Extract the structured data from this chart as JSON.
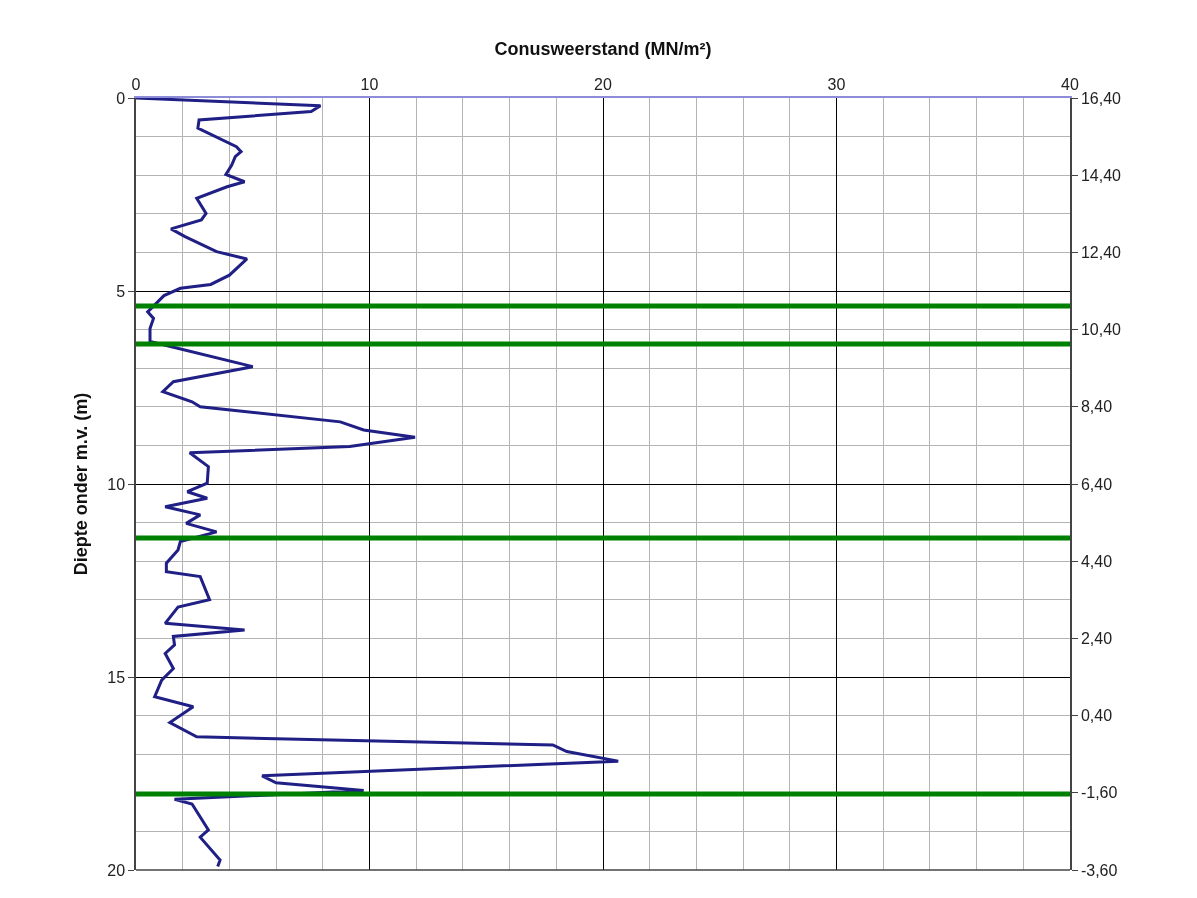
{
  "chart_data": {
    "type": "line",
    "xlabel": "Conusweerstand (MN/m²)",
    "ylabel": "Diepte onder m.v. (m)",
    "series": [
      {
        "color": "#1f1f85",
        "x": [
          0.0,
          7.9,
          7.5,
          2.7,
          2.65,
          4.3,
          4.5,
          4.25,
          4.1,
          3.85,
          4.65,
          3.9,
          2.6,
          3.0,
          2.8,
          1.5,
          2.1,
          3.45,
          4.75,
          4.0,
          3.2,
          1.9,
          1.2,
          0.5,
          0.75,
          0.6,
          0.6,
          5.0,
          1.6,
          1.15,
          2.4,
          2.75,
          8.75,
          9.75,
          11.95,
          9.15,
          2.3,
          3.1,
          3.05,
          2.2,
          3.05,
          1.25,
          2.75,
          2.15,
          3.45,
          1.9,
          1.8,
          1.3,
          1.3,
          2.75,
          3.15,
          1.8,
          1.25,
          4.65,
          1.6,
          1.65,
          1.25,
          1.6,
          1.1,
          0.8,
          2.45,
          1.45,
          2.6,
          17.85,
          18.45,
          20.65,
          5.4,
          6.0,
          9.75,
          1.65,
          2.4,
          3.1,
          2.75,
          3.6,
          3.5
        ],
        "values": [
          0.0,
          0.2,
          0.35,
          0.57,
          0.78,
          1.26,
          1.39,
          1.52,
          1.74,
          1.98,
          2.17,
          2.3,
          2.6,
          2.99,
          3.16,
          3.39,
          3.59,
          3.98,
          4.17,
          4.59,
          4.83,
          4.93,
          5.12,
          5.54,
          5.71,
          5.97,
          6.31,
          6.96,
          7.35,
          7.61,
          7.87,
          8.0,
          8.39,
          8.6,
          8.79,
          9.03,
          9.19,
          9.55,
          9.98,
          10.2,
          10.37,
          10.59,
          10.8,
          11.02,
          11.24,
          11.49,
          11.71,
          12.05,
          12.27,
          12.4,
          13.0,
          13.19,
          13.61,
          13.78,
          13.95,
          14.17,
          14.39,
          14.78,
          15.08,
          15.51,
          15.77,
          16.18,
          16.55,
          16.76,
          16.93,
          17.18,
          17.56,
          17.74,
          17.94,
          18.17,
          18.29,
          18.96,
          19.15,
          19.74,
          19.91
        ]
      }
    ],
    "xlim": [
      0,
      40
    ],
    "xticks": [
      0,
      {
        "value": 2,
        "label": null
      },
      {
        "value": 4,
        "label": null
      },
      {
        "value": 6,
        "label": null
      },
      {
        "value": 8,
        "label": null
      },
      10,
      {
        "value": 12,
        "label": null
      },
      {
        "value": 14,
        "label": null
      },
      {
        "value": 16,
        "label": null
      },
      {
        "value": 18,
        "label": null
      },
      20,
      {
        "value": 22,
        "label": null
      },
      {
        "value": 24,
        "label": null
      },
      {
        "value": 26,
        "label": null
      },
      {
        "value": 28,
        "label": null
      },
      30,
      {
        "value": 32,
        "label": null
      },
      {
        "value": 34,
        "label": null
      },
      {
        "value": 36,
        "label": null
      },
      {
        "value": 38,
        "label": null
      },
      40
    ],
    "ylim": [
      20,
      0
    ],
    "yticks": [
      0,
      {
        "value": 1,
        "label": null
      },
      {
        "value": 2,
        "label": null
      },
      {
        "value": 3,
        "label": null
      },
      {
        "value": 4,
        "label": null
      },
      5,
      {
        "value": 6,
        "label": null
      },
      {
        "value": 7,
        "label": null
      },
      {
        "value": 8,
        "label": null
      },
      {
        "value": 9,
        "label": null
      },
      10,
      {
        "value": 11,
        "label": null
      },
      {
        "value": 12,
        "label": null
      },
      {
        "value": 13,
        "label": null
      },
      {
        "value": 14,
        "label": null
      },
      15,
      {
        "value": 16,
        "label": null
      },
      {
        "value": 17,
        "label": null
      },
      {
        "value": 18,
        "label": null
      },
      {
        "value": 19,
        "label": null
      },
      20
    ],
    "y2lim": [
      -3.6,
      16.4
    ],
    "y2ticks": [
      {
        "value": 16.4,
        "label": "16,40"
      },
      {
        "value": 14.4,
        "label": "14,40"
      },
      {
        "value": 12.4,
        "label": "12,40"
      },
      {
        "value": 10.4,
        "label": "10,40"
      },
      {
        "value": 8.4,
        "label": "8,40"
      },
      {
        "value": 6.4,
        "label": "6,40"
      },
      {
        "value": 4.4,
        "label": "4,40"
      },
      {
        "value": 2.4,
        "label": "2,40"
      },
      {
        "value": 0.4,
        "label": "0,40"
      },
      {
        "value": -1.6,
        "label": "-1,60"
      },
      {
        "value": -3.6,
        "label": "-3,60"
      }
    ],
    "ref_lines": [
      {
        "axis": "y",
        "value": 5.39,
        "color": "#008000"
      },
      {
        "axis": "y",
        "value": 6.37,
        "color": "#008000"
      },
      {
        "axis": "y",
        "value": 11.4,
        "color": "#008000"
      },
      {
        "axis": "y",
        "value": 18.03,
        "color": "#008000"
      }
    ],
    "grid": true,
    "marker": "none",
    "line_style": "solid"
  }
}
